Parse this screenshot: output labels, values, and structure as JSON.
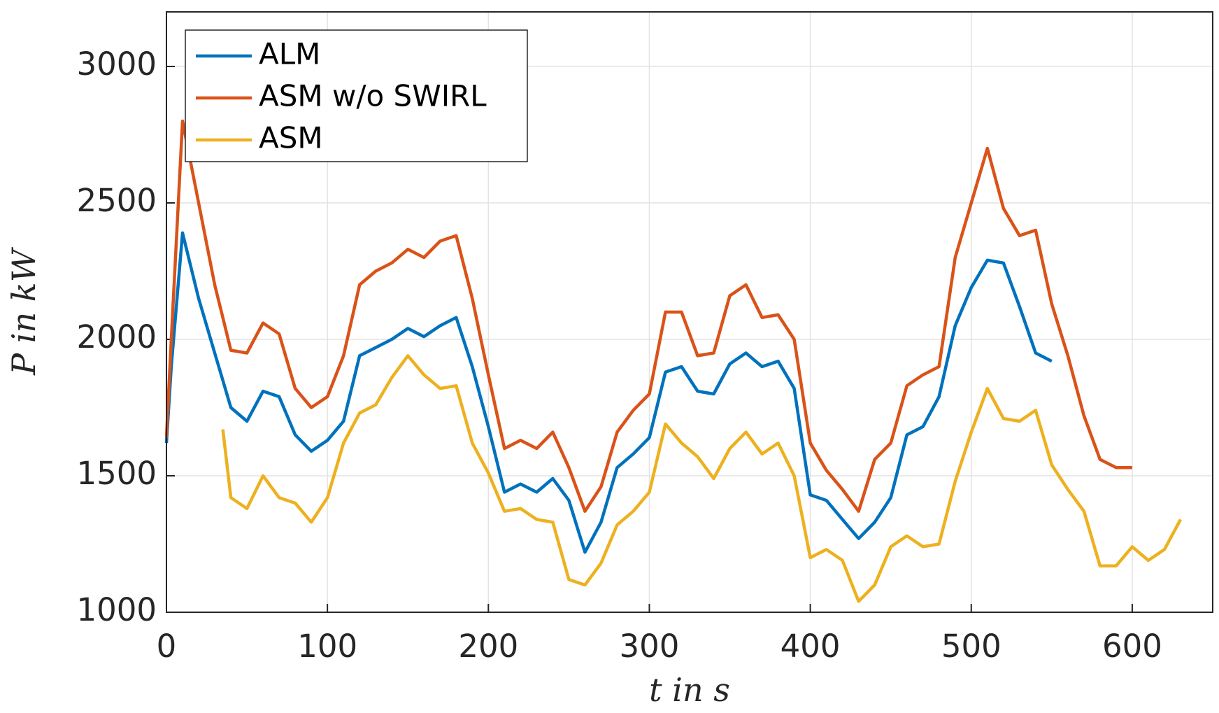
{
  "chart_data": {
    "type": "line",
    "x_label": "t in s",
    "y_label": "P in kW",
    "x": [
      0,
      3,
      10,
      20,
      30,
      35,
      40,
      50,
      60,
      70,
      80,
      90,
      100,
      110,
      120,
      130,
      140,
      150,
      160,
      170,
      180,
      190,
      200,
      210,
      220,
      230,
      240,
      250,
      260,
      270,
      280,
      290,
      300,
      310,
      320,
      330,
      340,
      350,
      360,
      370,
      380,
      390,
      400,
      410,
      420,
      430,
      440,
      450,
      460,
      470,
      480,
      490,
      500,
      510,
      520,
      530,
      540,
      550,
      560,
      570,
      580,
      590,
      600,
      610,
      620,
      630
    ],
    "series": [
      {
        "name": "ALM",
        "color": "#0072bd",
        "values": [
          1620,
          1900,
          2390,
          2150,
          1950,
          1850,
          1750,
          1700,
          1810,
          1790,
          1650,
          1590,
          1630,
          1700,
          1940,
          1970,
          2000,
          2040,
          2010,
          2050,
          2080,
          1900,
          1680,
          1440,
          1470,
          1440,
          1490,
          1410,
          1220,
          1330,
          1530,
          1580,
          1640,
          1880,
          1900,
          1810,
          1800,
          1910,
          1950,
          1900,
          1920,
          1820,
          1430,
          1410,
          1340,
          1270,
          1330,
          1420,
          1650,
          1680,
          1790,
          2050,
          2190,
          2290,
          2280,
          2120,
          1950,
          1920,
          null,
          null,
          null,
          null,
          null,
          null,
          null,
          null
        ]
      },
      {
        "name": "ASM w/o SWIRL",
        "color": "#d95319",
        "values": [
          1640,
          2000,
          2800,
          2500,
          2200,
          2080,
          1960,
          1950,
          2060,
          2020,
          1820,
          1750,
          1790,
          1940,
          2200,
          2250,
          2280,
          2330,
          2300,
          2360,
          2380,
          2150,
          1870,
          1600,
          1630,
          1600,
          1660,
          1530,
          1370,
          1460,
          1660,
          1740,
          1800,
          2100,
          2100,
          1940,
          1950,
          2160,
          2200,
          2080,
          2090,
          2000,
          1620,
          1520,
          1450,
          1370,
          1560,
          1620,
          1830,
          1870,
          1900,
          2300,
          2500,
          2700,
          2480,
          2380,
          2400,
          2130,
          1940,
          1720,
          1560,
          1530,
          1530,
          null,
          null,
          null
        ]
      },
      {
        "name": "ASM",
        "color": "#edb120",
        "values": [
          null,
          null,
          null,
          null,
          null,
          1670,
          1420,
          1380,
          1500,
          1420,
          1400,
          1330,
          1420,
          1620,
          1730,
          1760,
          1860,
          1940,
          1870,
          1820,
          1830,
          1620,
          1510,
          1370,
          1380,
          1340,
          1330,
          1120,
          1100,
          1180,
          1320,
          1370,
          1440,
          1690,
          1620,
          1570,
          1490,
          1600,
          1660,
          1580,
          1620,
          1500,
          1200,
          1230,
          1190,
          1040,
          1100,
          1240,
          1280,
          1240,
          1250,
          1480,
          1660,
          1820,
          1710,
          1700,
          1740,
          1540,
          1450,
          1370,
          1170,
          1170,
          1240,
          1190,
          1230,
          1340
        ]
      }
    ],
    "xlim": [
      0,
      650
    ],
    "ylim": [
      1000,
      3200
    ],
    "xticks": [
      0,
      100,
      200,
      300,
      400,
      500,
      600
    ],
    "yticks": [
      1000,
      1500,
      2000,
      2500,
      3000
    ],
    "grid": true,
    "legend": "top-left"
  }
}
